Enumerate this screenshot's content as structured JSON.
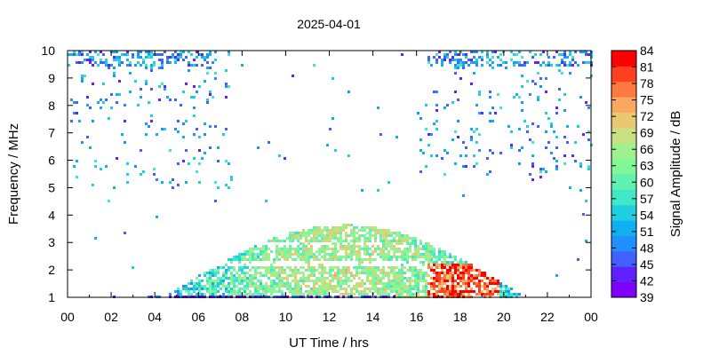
{
  "chart_data": {
    "type": "heatmap",
    "title": "2025-04-01",
    "xlabel": "UT Time / hrs",
    "ylabel": "Frequency / MHz",
    "colorbar_label": "Signal Amplitude / dB",
    "x_ticks": [
      "00",
      "02",
      "04",
      "06",
      "08",
      "10",
      "12",
      "14",
      "16",
      "18",
      "20",
      "22",
      "00"
    ],
    "y_ticks": [
      "1",
      "2",
      "3",
      "4",
      "5",
      "6",
      "7",
      "8",
      "9",
      "10"
    ],
    "xlim_hours": [
      0,
      24
    ],
    "ylim_mhz": [
      1,
      10
    ],
    "color_scale": {
      "min_db": 39,
      "max_db": 84,
      "ticks": [
        "84",
        "81",
        "78",
        "75",
        "72",
        "69",
        "66",
        "63",
        "60",
        "57",
        "54",
        "51",
        "48",
        "45",
        "42",
        "39"
      ],
      "colors": [
        "#8000ff",
        "#6020ff",
        "#4060ff",
        "#2090ff",
        "#10b0f0",
        "#20d0e0",
        "#40e8c8",
        "#60f0b0",
        "#80f898",
        "#a0f090",
        "#c8e080",
        "#e8c870",
        "#f8a860",
        "#ff7840",
        "#ff4020",
        "#ff0000"
      ]
    },
    "grid": false,
    "legend_position": "right"
  }
}
